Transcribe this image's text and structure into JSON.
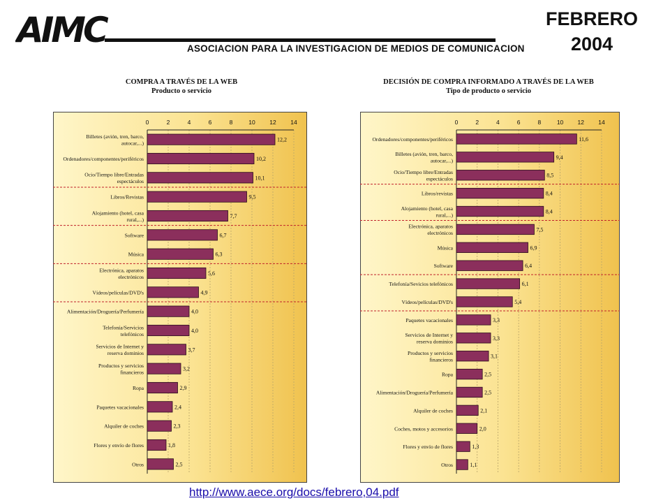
{
  "header": {
    "logo_text": "AIMC",
    "org_name": "ASOCIACION PARA LA INVESTIGACION DE MEDIOS DE COMUNICACION",
    "month": "FEBRERO",
    "year": "2004"
  },
  "colors": {
    "bar_fill": "#8b2f5c",
    "bar_stroke": "#2a0d1c",
    "panel_bg_light": "#fff6c9",
    "panel_bg_dark": "#f0c24e",
    "separator": "#c0202a"
  },
  "chart_data": [
    {
      "type": "bar",
      "orientation": "horizontal",
      "title": "COMPRA A TRAVÉS DE LA WEB",
      "subtitle": "Producto o servicio",
      "xlim": [
        0,
        14
      ],
      "xticks": [
        0,
        2,
        4,
        6,
        8,
        10,
        12,
        14
      ],
      "grid": true,
      "categories": [
        "Billetes (avión, tren, barco, autocar,...)",
        "Ordenadores/componentes/periféricos",
        "Ocio/Tiempo libre/Entradas espectáculos",
        "Libros/Revistas",
        "Alojamiento (hotel, casa rural,...)",
        "Software",
        "Música",
        "Electrónica, aparatos electrónicos",
        "Vídeos/películas/DVD's",
        "Alimentación/Droguería/Perfumería",
        "Telefonía/Servicios telefónicos",
        "Servicios de Internet y reserva dominios",
        "Productos y servicios financieros",
        "Ropa",
        "Paquetes vacacionales",
        "Alquiler de coches",
        "Flores y envío de flores",
        "Otros"
      ],
      "values": [
        12.2,
        10.2,
        10.1,
        9.5,
        7.7,
        6.7,
        6.3,
        5.6,
        4.9,
        4.0,
        4.0,
        3.7,
        3.2,
        2.9,
        2.4,
        2.3,
        1.8,
        2.5
      ],
      "value_labels": [
        "12,2",
        "10,2",
        "10,1",
        "9,5",
        "7,7",
        "6,7",
        "6,3",
        "5,6",
        "4,9",
        "4,0",
        "4,0",
        "3,7",
        "3,2",
        "2,9",
        "2,4",
        "2,3",
        "1,8",
        "2,5"
      ]
    },
    {
      "type": "bar",
      "orientation": "horizontal",
      "title": "DECISIÓN DE COMPRA INFORMADO A TRAVÉS DE LA WEB",
      "subtitle": "Tipo de producto o servicio",
      "xlim": [
        0,
        14
      ],
      "xticks": [
        0,
        2,
        4,
        6,
        8,
        10,
        12,
        14
      ],
      "grid": true,
      "categories": [
        "Ordenadores/componentes/periféricos",
        "Billetes (avión, tren, barco, autocar,...)",
        "Ocio/Tiempo libre/Entradas espectáculos",
        "Libros/revistas",
        "Alojamiento (hotel, casa rural,...)",
        "Electrónica, aparatos electrónicos",
        "Música",
        "Software",
        "Telefonía/Sevicios telefónicos",
        "Vídeos/películas/DVD's",
        "Paquetes vacacionales",
        "Servicios de Internet y reserva dominios",
        "Productos y servicios financieros",
        "Ropa",
        "Alimentación/Droguería/Perfumería",
        "Alquiler de coches",
        "Coches, motos y accesorios",
        "Flores y envío de flores",
        "Otros"
      ],
      "values": [
        11.6,
        9.4,
        8.5,
        8.4,
        8.4,
        7.5,
        6.9,
        6.4,
        6.1,
        5.4,
        3.3,
        3.3,
        3.1,
        2.5,
        2.5,
        2.1,
        2.0,
        1.3,
        1.1
      ],
      "value_labels": [
        "11,6",
        "9,4",
        "8,5",
        "8,4",
        "8,4",
        "7,5",
        "6,9",
        "6,4",
        "6,1",
        "5,4",
        "3,3",
        "3,3",
        "3,1",
        "2,5",
        "2,5",
        "2,1",
        "2,0",
        "1,3",
        "1,1"
      ]
    }
  ],
  "footer": {
    "link": "http://www.aece.org/docs/febrero,04.pdf"
  }
}
